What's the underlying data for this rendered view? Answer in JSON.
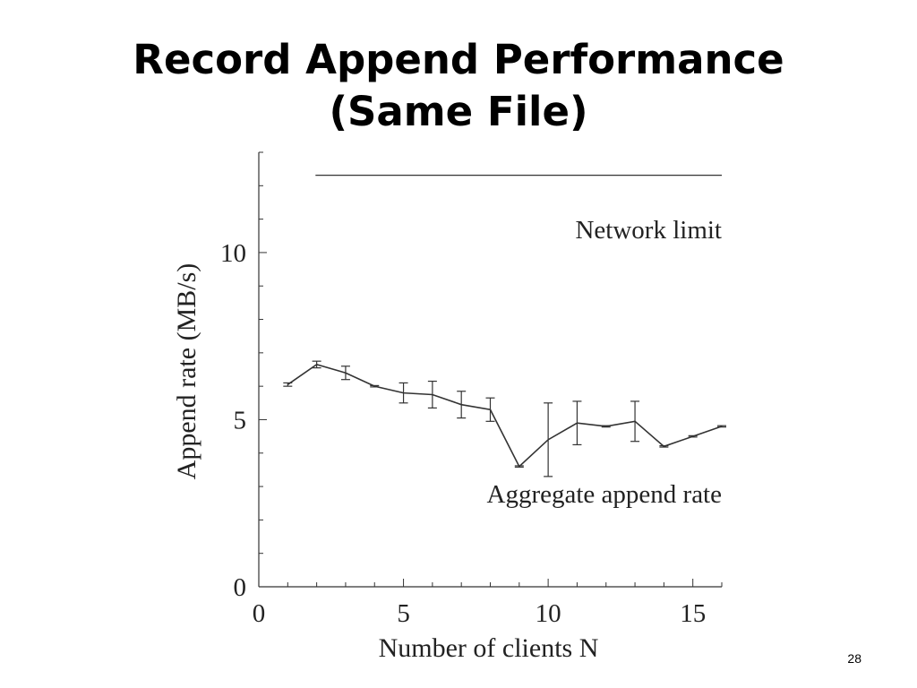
{
  "slide": {
    "title_line1": "Record Append Performance",
    "title_line2": "(Same File)",
    "page_number": "28"
  },
  "chart_data": {
    "type": "line",
    "title": "",
    "xlabel": "Number of clients N",
    "ylabel": "Append rate (MB/s)",
    "xlim": [
      0,
      16
    ],
    "ylim": [
      0,
      13
    ],
    "x_ticks": [
      0,
      5,
      10,
      15
    ],
    "y_ticks": [
      0,
      5,
      10
    ],
    "grid": false,
    "legend": "none",
    "series": [
      {
        "name": "Aggregate append rate",
        "x": [
          1,
          2,
          3,
          4,
          5,
          6,
          7,
          8,
          9,
          10,
          11,
          12,
          13,
          14,
          15,
          16
        ],
        "y": [
          6.05,
          6.65,
          6.4,
          6.0,
          5.8,
          5.75,
          5.45,
          5.3,
          3.6,
          4.4,
          4.9,
          4.8,
          4.95,
          4.2,
          4.5,
          4.8
        ],
        "err": [
          0.05,
          0.1,
          0.2,
          0.02,
          0.3,
          0.4,
          0.4,
          0.35,
          0.02,
          1.1,
          0.65,
          0.02,
          0.6,
          0.02,
          0.02,
          0.02
        ]
      }
    ],
    "reference_lines": [
      {
        "label": "Network limit",
        "y": 12.5,
        "x_range": [
          1,
          16
        ]
      }
    ],
    "annotations": [
      "Network limit",
      "Aggregate append rate"
    ]
  }
}
